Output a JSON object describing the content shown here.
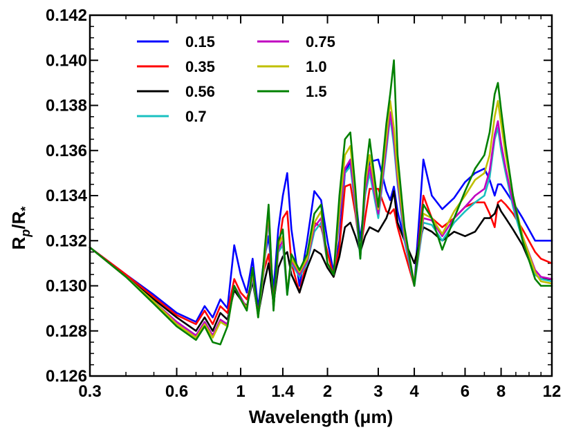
{
  "chart_data": {
    "type": "line",
    "title": "",
    "xlabel": "Wavelength (μm)",
    "ylabel": "R",
    "ylabel_sub": "p",
    "ylabel_rest": "/R",
    "ylabel_star": "*",
    "xscale": "log",
    "xlim": [
      0.3,
      12
    ],
    "ylim": [
      0.126,
      0.142
    ],
    "xticks": [
      0.3,
      0.6,
      1,
      1.4,
      2,
      3,
      4,
      6,
      8,
      12
    ],
    "xtick_labels": [
      "0.3",
      "0.6",
      "1",
      "1.4",
      "2",
      "3",
      "4",
      "6",
      "8",
      "12"
    ],
    "yticks": [
      0.126,
      0.128,
      0.13,
      0.132,
      0.134,
      0.136,
      0.138,
      0.14,
      0.142
    ],
    "ytick_labels": [
      "0.126",
      "0.128",
      "0.130",
      "0.132",
      "0.134",
      "0.136",
      "0.138",
      "0.140",
      "0.142"
    ],
    "legend_position": "top-left",
    "grid": false,
    "x": [
      0.3,
      0.4,
      0.5,
      0.6,
      0.7,
      0.75,
      0.8,
      0.85,
      0.9,
      0.95,
      1.0,
      1.05,
      1.1,
      1.15,
      1.2,
      1.25,
      1.3,
      1.35,
      1.4,
      1.45,
      1.5,
      1.6,
      1.7,
      1.8,
      1.9,
      2.0,
      2.1,
      2.2,
      2.3,
      2.4,
      2.5,
      2.6,
      2.7,
      2.8,
      3.0,
      3.2,
      3.3,
      3.4,
      3.5,
      3.7,
      4.0,
      4.3,
      4.6,
      5.0,
      5.5,
      6.0,
      6.5,
      7.0,
      7.3,
      7.6,
      7.8,
      8.0,
      8.3,
      8.8,
      9.5,
      10.5,
      11.0,
      12.0
    ],
    "series": [
      {
        "name": "0.15",
        "color": "#0000ff",
        "values": [
          0.1317,
          0.1305,
          0.1296,
          0.1288,
          0.1284,
          0.1291,
          0.1286,
          0.1294,
          0.129,
          0.1318,
          0.1305,
          0.1297,
          0.1312,
          0.129,
          0.131,
          0.1322,
          0.1298,
          0.1325,
          0.134,
          0.135,
          0.1325,
          0.13,
          0.132,
          0.1342,
          0.1338,
          0.132,
          0.1306,
          0.132,
          0.135,
          0.1355,
          0.134,
          0.132,
          0.134,
          0.1355,
          0.1356,
          0.1342,
          0.1338,
          0.1344,
          0.1333,
          0.132,
          0.13,
          0.1356,
          0.134,
          0.1334,
          0.1339,
          0.1346,
          0.135,
          0.1352,
          0.1347,
          0.134,
          0.1345,
          0.1345,
          0.1342,
          0.1337,
          0.133,
          0.132,
          0.132,
          0.132
        ]
      },
      {
        "name": "0.35",
        "color": "#ff0000",
        "values": [
          0.1317,
          0.1305,
          0.1295,
          0.1287,
          0.1283,
          0.1289,
          0.1283,
          0.1291,
          0.1288,
          0.1303,
          0.1297,
          0.1294,
          0.1303,
          0.1288,
          0.1306,
          0.1314,
          0.1293,
          0.1316,
          0.133,
          0.1333,
          0.131,
          0.1297,
          0.1312,
          0.1328,
          0.1326,
          0.1315,
          0.1304,
          0.1317,
          0.1344,
          0.1345,
          0.1332,
          0.1315,
          0.133,
          0.1343,
          0.1343,
          0.1333,
          0.1332,
          0.1334,
          0.1326,
          0.1315,
          0.13,
          0.134,
          0.133,
          0.1326,
          0.133,
          0.1335,
          0.1337,
          0.1337,
          0.1332,
          0.1326,
          0.1337,
          0.1338,
          0.1336,
          0.1332,
          0.1325,
          0.1315,
          0.1312,
          0.131
        ]
      },
      {
        "name": "0.56",
        "color": "#000000",
        "values": [
          0.1317,
          0.1304,
          0.1294,
          0.1286,
          0.128,
          0.1286,
          0.128,
          0.1288,
          0.1285,
          0.1298,
          0.1294,
          0.1291,
          0.1302,
          0.1287,
          0.13,
          0.131,
          0.1292,
          0.1308,
          0.1313,
          0.1315,
          0.1305,
          0.1297,
          0.1308,
          0.1316,
          0.1314,
          0.1308,
          0.1304,
          0.1313,
          0.1326,
          0.1328,
          0.1322,
          0.1315,
          0.1322,
          0.1326,
          0.1324,
          0.133,
          0.1335,
          0.1342,
          0.1328,
          0.132,
          0.131,
          0.1326,
          0.1324,
          0.132,
          0.1324,
          0.1322,
          0.1324,
          0.133,
          0.133,
          0.1332,
          0.1336,
          0.1333,
          0.133,
          0.1325,
          0.1318,
          0.1305,
          0.1303,
          0.1303
        ]
      },
      {
        "name": "0.7",
        "color": "#19c0c0",
        "values": [
          0.1317,
          0.1304,
          0.1293,
          0.1284,
          0.1278,
          0.1284,
          0.1278,
          0.1284,
          0.1283,
          0.13,
          0.1295,
          0.129,
          0.1304,
          0.1286,
          0.1305,
          0.133,
          0.129,
          0.1315,
          0.1318,
          0.1296,
          0.131,
          0.1304,
          0.131,
          0.1324,
          0.1328,
          0.131,
          0.1305,
          0.133,
          0.135,
          0.1353,
          0.1335,
          0.1312,
          0.134,
          0.135,
          0.133,
          0.136,
          0.1375,
          0.1362,
          0.1345,
          0.132,
          0.13,
          0.1328,
          0.1327,
          0.132,
          0.1328,
          0.1333,
          0.1337,
          0.134,
          0.1348,
          0.1365,
          0.137,
          0.136,
          0.135,
          0.1335,
          0.132,
          0.1305,
          0.1303,
          0.1302
        ]
      },
      {
        "name": "0.75",
        "color": "#c000c0",
        "values": [
          0.1317,
          0.1304,
          0.1293,
          0.1284,
          0.1278,
          0.1284,
          0.1278,
          0.1285,
          0.1283,
          0.13,
          0.1295,
          0.129,
          0.1305,
          0.1287,
          0.1306,
          0.1332,
          0.129,
          0.1316,
          0.132,
          0.1297,
          0.1311,
          0.1305,
          0.1311,
          0.1326,
          0.133,
          0.131,
          0.1305,
          0.1331,
          0.1352,
          0.1356,
          0.1337,
          0.1313,
          0.1342,
          0.1353,
          0.1332,
          0.1362,
          0.1377,
          0.1365,
          0.1347,
          0.1322,
          0.1301,
          0.133,
          0.1329,
          0.1322,
          0.133,
          0.1335,
          0.134,
          0.1343,
          0.1351,
          0.1367,
          0.1373,
          0.1363,
          0.1352,
          0.1337,
          0.1322,
          0.1307,
          0.1304,
          0.1303
        ]
      },
      {
        "name": "1.0",
        "color": "#bfbf00",
        "values": [
          0.1317,
          0.1304,
          0.1293,
          0.1283,
          0.1277,
          0.1283,
          0.1277,
          0.1284,
          0.1282,
          0.13,
          0.1294,
          0.129,
          0.1306,
          0.1286,
          0.1307,
          0.1334,
          0.129,
          0.1318,
          0.1322,
          0.1297,
          0.1312,
          0.1306,
          0.1312,
          0.1328,
          0.1333,
          0.131,
          0.1305,
          0.1334,
          0.1358,
          0.1362,
          0.134,
          0.1313,
          0.1345,
          0.1358,
          0.1334,
          0.1366,
          0.1382,
          0.137,
          0.135,
          0.1324,
          0.1301,
          0.1332,
          0.133,
          0.1323,
          0.1333,
          0.134,
          0.1347,
          0.135,
          0.1358,
          0.1375,
          0.1382,
          0.1372,
          0.1358,
          0.134,
          0.1322,
          0.1306,
          0.1302,
          0.1301
        ]
      },
      {
        "name": "1.5",
        "color": "#008000",
        "values": [
          0.1317,
          0.1304,
          0.1292,
          0.1282,
          0.1276,
          0.1282,
          0.1275,
          0.1274,
          0.1282,
          0.13,
          0.1294,
          0.1289,
          0.1308,
          0.1286,
          0.131,
          0.1336,
          0.1289,
          0.132,
          0.1325,
          0.1296,
          0.1314,
          0.1307,
          0.1314,
          0.1332,
          0.1336,
          0.131,
          0.1305,
          0.134,
          0.1365,
          0.1368,
          0.1343,
          0.1312,
          0.1348,
          0.1365,
          0.1335,
          0.1372,
          0.1385,
          0.14,
          0.1358,
          0.1326,
          0.13,
          0.1336,
          0.133,
          0.1316,
          0.133,
          0.1342,
          0.1352,
          0.1358,
          0.1368,
          0.1385,
          0.139,
          0.1378,
          0.1362,
          0.134,
          0.132,
          0.1303,
          0.13,
          0.13
        ]
      }
    ]
  }
}
